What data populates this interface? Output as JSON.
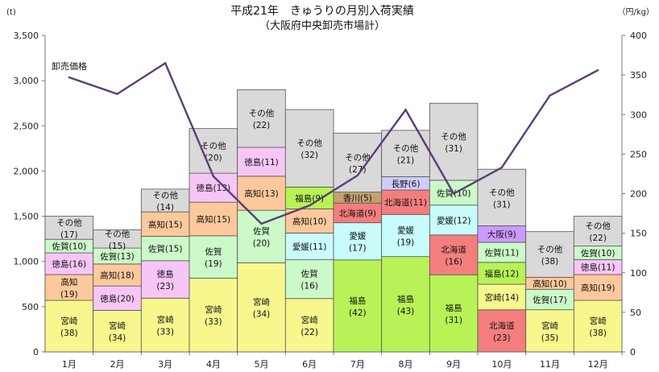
{
  "chart_data": {
    "type": "bar",
    "title": "平成21年　きゅうりの月別入荷実績",
    "subtitle": "（大阪府中央卸売市場計）",
    "y_unit_left": "(t)",
    "y_unit_right": "（円/kg）",
    "line_label": "卸売価格",
    "categories": [
      "1月",
      "2月",
      "3月",
      "4月",
      "5月",
      "6月",
      "7月",
      "8月",
      "9月",
      "10月",
      "11月",
      "12月"
    ],
    "ylim": [
      0,
      3500
    ],
    "yticks": [
      "0",
      "500",
      "1,000",
      "1,500",
      "2,000",
      "2,500",
      "3,000",
      "3,500"
    ],
    "y2lim": [
      0,
      400
    ],
    "y2ticks": [
      "0",
      "50",
      "100",
      "150",
      "200",
      "250",
      "300",
      "350",
      "400"
    ],
    "grid": false,
    "segment_order": "bottom-to-top",
    "colors": {
      "宮崎": "#f7f78e",
      "福島": "#b8f257",
      "北海道": "#f47e7e",
      "愛媛": "#c9fbfb",
      "佐賀": "#ccf9c8",
      "高知": "#fdc99c",
      "徳島": "#f6c6f6",
      "香川": "#c4a16f",
      "長野": "#ccccff",
      "大阪": "#cc99ff",
      "その他": "#d9d9d9",
      "line": "#5c3d79",
      "border": "#555555"
    },
    "stacks": [
      {
        "total": 1500,
        "segments": [
          {
            "name": "宮崎",
            "label": "宮崎",
            "pct": "(38)",
            "value": 570
          },
          {
            "name": "高知",
            "label": "高知",
            "pct": "(19)",
            "value": 285
          },
          {
            "name": "徳島",
            "label": "徳島(16)",
            "pct": "",
            "value": 240
          },
          {
            "name": "佐賀",
            "label": "佐賀(10)",
            "pct": "",
            "value": 150
          },
          {
            "name": "その他",
            "label": "その他",
            "pct": "(17)",
            "value": 255
          }
        ]
      },
      {
        "total": 1350,
        "segments": [
          {
            "name": "宮崎",
            "label": "宮崎",
            "pct": "(34)",
            "value": 459
          },
          {
            "name": "徳島",
            "label": "徳島(20)",
            "pct": "",
            "value": 270
          },
          {
            "name": "高知",
            "label": "高知(18)",
            "pct": "",
            "value": 243
          },
          {
            "name": "佐賀",
            "label": "佐賀(13)",
            "pct": "",
            "value": 176
          },
          {
            "name": "その他",
            "label": "その他",
            "pct": "(15)",
            "value": 202
          }
        ]
      },
      {
        "total": 1800,
        "segments": [
          {
            "name": "宮崎",
            "label": "宮崎",
            "pct": "(33)",
            "value": 594
          },
          {
            "name": "徳島",
            "label": "徳島",
            "pct": "(23)",
            "value": 414
          },
          {
            "name": "佐賀",
            "label": "佐賀(15)",
            "pct": "",
            "value": 270
          },
          {
            "name": "高知",
            "label": "高知(15)",
            "pct": "",
            "value": 270
          },
          {
            "name": "その他",
            "label": "その他",
            "pct": "(14)",
            "value": 252
          }
        ]
      },
      {
        "total": 2470,
        "segments": [
          {
            "name": "宮崎",
            "label": "宮崎",
            "pct": "(33)",
            "value": 815
          },
          {
            "name": "佐賀",
            "label": "佐賀",
            "pct": "(19)",
            "value": 469
          },
          {
            "name": "高知",
            "label": "高知(15)",
            "pct": "",
            "value": 371
          },
          {
            "name": "徳島",
            "label": "徳島(13)",
            "pct": "",
            "value": 321
          },
          {
            "name": "その他",
            "label": "その他",
            "pct": "(20)",
            "value": 494
          }
        ]
      },
      {
        "total": 2900,
        "segments": [
          {
            "name": "宮崎",
            "label": "宮崎",
            "pct": "(34)",
            "value": 986
          },
          {
            "name": "佐賀",
            "label": "佐賀",
            "pct": "(20)",
            "value": 580
          },
          {
            "name": "高知",
            "label": "高知(13)",
            "pct": "",
            "value": 377
          },
          {
            "name": "徳島",
            "label": "徳島(11)",
            "pct": "",
            "value": 319
          },
          {
            "name": "その他",
            "label": "その他",
            "pct": "(22)",
            "value": 638
          }
        ]
      },
      {
        "total": 2680,
        "segments": [
          {
            "name": "宮崎",
            "label": "宮崎",
            "pct": "(22)",
            "value": 590
          },
          {
            "name": "佐賀",
            "label": "佐賀",
            "pct": "(16)",
            "value": 429
          },
          {
            "name": "愛媛",
            "label": "愛媛(11)",
            "pct": "",
            "value": 295
          },
          {
            "name": "高知",
            "label": "高知(10)",
            "pct": "",
            "value": 268
          },
          {
            "name": "福島",
            "label": "福島(9)",
            "pct": "",
            "value": 241
          },
          {
            "name": "その他",
            "label": "その他",
            "pct": "(32)",
            "value": 857
          }
        ]
      },
      {
        "total": 2420,
        "segments": [
          {
            "name": "福島",
            "label": "福島",
            "pct": "(42)",
            "value": 1017
          },
          {
            "name": "愛媛",
            "label": "愛媛",
            "pct": "(17)",
            "value": 411
          },
          {
            "name": "北海道",
            "label": "北海道(9)",
            "pct": "",
            "value": 218
          },
          {
            "name": "香川",
            "label": "香川(5)",
            "pct": "",
            "value": 121
          },
          {
            "name": "その他",
            "label": "その他",
            "pct": "(27)",
            "value": 653
          }
        ]
      },
      {
        "total": 2450,
        "segments": [
          {
            "name": "福島",
            "label": "福島",
            "pct": "(43)",
            "value": 1054
          },
          {
            "name": "愛媛",
            "label": "愛媛",
            "pct": "(19)",
            "value": 466
          },
          {
            "name": "北海道",
            "label": "北海道(11)",
            "pct": "",
            "value": 270
          },
          {
            "name": "長野",
            "label": "長野(6)",
            "pct": "",
            "value": 147
          },
          {
            "name": "その他",
            "label": "その他",
            "pct": "(21)",
            "value": 513
          }
        ]
      },
      {
        "total": 2750,
        "segments": [
          {
            "name": "福島",
            "label": "福島",
            "pct": "(31)",
            "value": 853
          },
          {
            "name": "北海道",
            "label": "北海道",
            "pct": "(16)",
            "value": 440
          },
          {
            "name": "愛媛",
            "label": "愛媛(12)",
            "pct": "",
            "value": 330
          },
          {
            "name": "佐賀",
            "label": "佐賀(10)",
            "pct": "",
            "value": 275
          },
          {
            "name": "その他",
            "label": "その他",
            "pct": "(31)",
            "value": 852
          }
        ]
      },
      {
        "total": 2020,
        "segments": [
          {
            "name": "北海道",
            "label": "北海道",
            "pct": "(23)",
            "value": 465
          },
          {
            "name": "宮崎",
            "label": "宮崎(14)",
            "pct": "",
            "value": 283
          },
          {
            "name": "福島",
            "label": "福島(12)",
            "pct": "",
            "value": 242
          },
          {
            "name": "佐賀",
            "label": "佐賀(11)",
            "pct": "",
            "value": 222
          },
          {
            "name": "大阪",
            "label": "大阪(9)",
            "pct": "",
            "value": 182
          },
          {
            "name": "その他",
            "label": "その他",
            "pct": "(31)",
            "value": 626
          }
        ]
      },
      {
        "total": 1330,
        "segments": [
          {
            "name": "宮崎",
            "label": "宮崎",
            "pct": "(35)",
            "value": 466
          },
          {
            "name": "佐賀",
            "label": "佐賀(17)",
            "pct": "",
            "value": 226
          },
          {
            "name": "高知",
            "label": "高知(10)",
            "pct": "",
            "value": 133
          },
          {
            "name": "その他",
            "label": "その他",
            "pct": "(38)",
            "value": 505
          }
        ]
      },
      {
        "total": 1500,
        "segments": [
          {
            "name": "宮崎",
            "label": "宮崎",
            "pct": "(38)",
            "value": 570
          },
          {
            "name": "高知",
            "label": "高知(19)",
            "pct": "",
            "value": 285
          },
          {
            "name": "徳島",
            "label": "徳島(11)",
            "pct": "",
            "value": 165
          },
          {
            "name": "佐賀",
            "label": "佐賀(10)",
            "pct": "",
            "value": 150
          },
          {
            "name": "その他",
            "label": "その他",
            "pct": "(22)",
            "value": 330
          }
        ]
      }
    ],
    "price_line": {
      "axis": "right",
      "values": [
        347,
        326,
        365,
        222,
        162,
        185,
        223,
        306,
        200,
        233,
        324,
        356
      ]
    }
  }
}
